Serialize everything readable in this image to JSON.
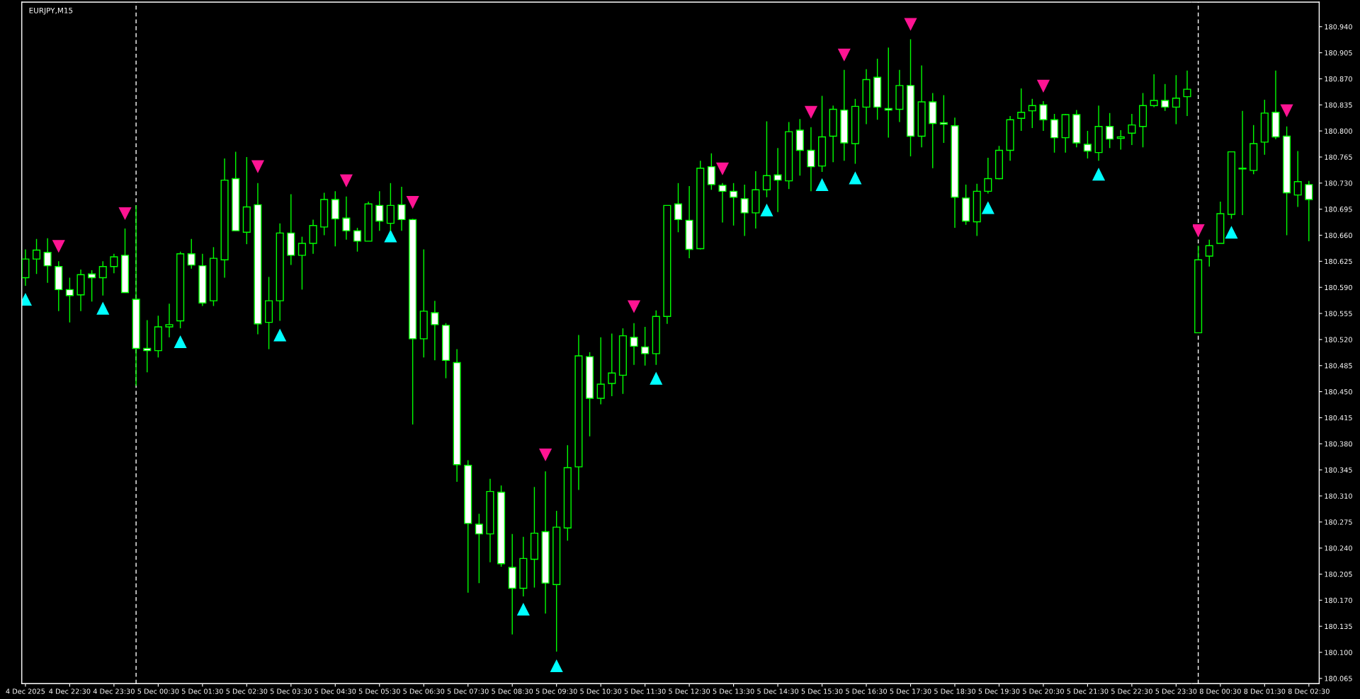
{
  "chart_data": [
    {
      "type": "candlestick",
      "title": "EURJPY,M15",
      "color": "#00ff00",
      "tick_labels": "x",
      "x": [
        "2025-12-04T21:30",
        "2025-12-04T21:45",
        "2025-12-04T22:00",
        "2025-12-04T22:15",
        "2025-12-04T22:30",
        "2025-12-04T22:45",
        "2025-12-04T23:00",
        "2025-12-04T23:15",
        "2025-12-04T23:30",
        "2025-12-04T23:45",
        "2025-12-05T00:00",
        "2025-12-05T00:15",
        "2025-12-05T00:30",
        "2025-12-05T00:45",
        "2025-12-05T01:00",
        "2025-12-05T01:15",
        "2025-12-05T01:30",
        "2025-12-05T01:45",
        "2025-12-05T02:00",
        "2025-12-05T02:15",
        "2025-12-05T02:30",
        "2025-12-05T02:45",
        "2025-12-05T03:00",
        "2025-12-05T03:15",
        "2025-12-05T03:30",
        "2025-12-05T03:45",
        "2025-12-05T04:00",
        "2025-12-05T04:15",
        "2025-12-05T04:30",
        "2025-12-05T04:45",
        "2025-12-05T05:00",
        "2025-12-05T05:15",
        "2025-12-05T05:30",
        "2025-12-05T05:45",
        "2025-12-05T06:00",
        "2025-12-05T06:15",
        "2025-12-05T06:30",
        "2025-12-05T06:45",
        "2025-12-05T07:00",
        "2025-12-05T07:15",
        "2025-12-05T07:30",
        "2025-12-05T07:45",
        "2025-12-05T08:00",
        "2025-12-05T08:15",
        "2025-12-05T08:30",
        "2025-12-05T08:45",
        "2025-12-05T09:00",
        "2025-12-05T09:15",
        "2025-12-05T09:30",
        "2025-12-05T09:45",
        "2025-12-05T10:00",
        "2025-12-05T10:15",
        "2025-12-05T10:30",
        "2025-12-05T10:45",
        "2025-12-05T11:00",
        "2025-12-05T11:15",
        "2025-12-05T11:30",
        "2025-12-05T11:45",
        "2025-12-05T12:00",
        "2025-12-05T12:15",
        "2025-12-05T12:30",
        "2025-12-05T12:45",
        "2025-12-05T13:00",
        "2025-12-05T13:15",
        "2025-12-05T13:30",
        "2025-12-05T13:45",
        "2025-12-05T14:00",
        "2025-12-05T14:15",
        "2025-12-05T14:30",
        "2025-12-05T14:45",
        "2025-12-05T15:00",
        "2025-12-05T15:15",
        "2025-12-05T15:30",
        "2025-12-05T15:45",
        "2025-12-05T16:00",
        "2025-12-05T16:15",
        "2025-12-05T16:30",
        "2025-12-05T16:45",
        "2025-12-05T17:00",
        "2025-12-05T17:15",
        "2025-12-05T17:30",
        "2025-12-05T17:45",
        "2025-12-05T18:00",
        "2025-12-05T18:15",
        "2025-12-05T18:30",
        "2025-12-05T18:45",
        "2025-12-05T19:00",
        "2025-12-05T19:15",
        "2025-12-05T19:30",
        "2025-12-05T19:45",
        "2025-12-05T20:00",
        "2025-12-05T20:15",
        "2025-12-05T20:30",
        "2025-12-05T20:45",
        "2025-12-05T21:00",
        "2025-12-05T21:15",
        "2025-12-05T21:30",
        "2025-12-05T21:45",
        "2025-12-05T22:00",
        "2025-12-05T22:15",
        "2025-12-05T22:30",
        "2025-12-05T22:45",
        "2025-12-05T23:00",
        "2025-12-05T23:15",
        "2025-12-05T23:30",
        "2025-12-05T23:45"
      ],
      "ohlc": [
        [
          180.603,
          180.641,
          180.592,
          180.628
        ],
        [
          180.628,
          180.655,
          180.608,
          180.64
        ],
        [
          180.637,
          180.656,
          180.596,
          180.619
        ],
        [
          180.618,
          180.625,
          180.558,
          180.587
        ],
        [
          180.587,
          180.603,
          180.543,
          180.579
        ],
        [
          180.58,
          180.614,
          180.558,
          180.607
        ],
        [
          180.608,
          180.613,
          180.571,
          180.603
        ],
        [
          180.603,
          180.625,
          180.579,
          180.618
        ],
        [
          180.618,
          180.635,
          180.609,
          180.631
        ],
        [
          180.633,
          180.669,
          180.583,
          180.583
        ],
        [
          180.574,
          180.7,
          180.458,
          180.508
        ],
        [
          180.508,
          180.546,
          180.476,
          180.505
        ],
        [
          180.505,
          180.552,
          180.496,
          180.537
        ],
        [
          180.537,
          180.568,
          180.523,
          180.54
        ],
        [
          180.545,
          180.638,
          180.535,
          180.635
        ],
        [
          180.635,
          180.655,
          180.615,
          180.62
        ],
        [
          180.619,
          180.635,
          180.565,
          180.569
        ],
        [
          180.572,
          180.644,
          180.565,
          180.629
        ],
        [
          180.627,
          180.763,
          180.603,
          180.734
        ],
        [
          180.736,
          180.772,
          180.666,
          180.666
        ],
        [
          180.664,
          180.765,
          180.648,
          180.698
        ],
        [
          180.701,
          180.73,
          180.527,
          180.541
        ],
        [
          180.543,
          180.604,
          180.507,
          180.572
        ],
        [
          180.572,
          180.676,
          180.545,
          180.663
        ],
        [
          180.663,
          180.715,
          180.62,
          180.633
        ],
        [
          180.633,
          180.658,
          180.587,
          180.649
        ],
        [
          180.649,
          180.681,
          180.635,
          180.673
        ],
        [
          180.671,
          180.717,
          180.66,
          180.708
        ],
        [
          180.708,
          180.719,
          180.645,
          180.682
        ],
        [
          180.683,
          180.712,
          180.654,
          180.666
        ],
        [
          180.666,
          180.67,
          180.638,
          180.652
        ],
        [
          180.652,
          180.705,
          180.652,
          180.702
        ],
        [
          180.7,
          180.719,
          180.666,
          180.679
        ],
        [
          180.676,
          180.73,
          180.666,
          180.7
        ],
        [
          180.701,
          180.725,
          180.666,
          180.681
        ],
        [
          180.681,
          180.682,
          180.406,
          180.521
        ],
        [
          180.521,
          180.641,
          180.496,
          180.558
        ],
        [
          180.556,
          180.572,
          180.492,
          180.54
        ],
        [
          180.539,
          180.542,
          180.468,
          180.492
        ],
        [
          180.489,
          180.507,
          180.329,
          180.352
        ],
        [
          180.351,
          180.358,
          180.18,
          180.273
        ],
        [
          180.272,
          180.286,
          180.193,
          180.259
        ],
        [
          180.259,
          180.333,
          180.221,
          180.316
        ],
        [
          180.315,
          180.324,
          180.215,
          180.219
        ],
        [
          180.214,
          180.259,
          180.124,
          180.186
        ],
        [
          180.186,
          180.255,
          180.175,
          180.226
        ],
        [
          180.225,
          180.322,
          180.187,
          180.26
        ],
        [
          180.262,
          180.343,
          180.152,
          180.193
        ],
        [
          180.191,
          180.29,
          180.101,
          180.268
        ],
        [
          180.267,
          180.378,
          180.25,
          180.348
        ],
        [
          180.349,
          180.526,
          180.318,
          180.498
        ],
        [
          180.497,
          180.503,
          180.39,
          180.441
        ],
        [
          180.441,
          180.523,
          180.433,
          180.46
        ],
        [
          180.461,
          180.528,
          180.444,
          180.475
        ],
        [
          180.472,
          180.535,
          180.447,
          180.525
        ],
        [
          180.523,
          180.542,
          180.486,
          180.511
        ],
        [
          180.51,
          180.537,
          180.485,
          180.501
        ],
        [
          180.501,
          180.559,
          180.486,
          180.551
        ],
        [
          180.551,
          180.7,
          180.541,
          180.7
        ],
        [
          180.702,
          180.73,
          180.664,
          180.681
        ],
        [
          180.68,
          180.726,
          180.629,
          180.641
        ],
        [
          180.642,
          180.76,
          180.641,
          180.75
        ],
        [
          180.752,
          180.77,
          180.721,
          180.728
        ],
        [
          180.727,
          180.73,
          180.677,
          180.719
        ],
        [
          180.719,
          180.73,
          180.673,
          180.711
        ],
        [
          180.709,
          180.728,
          180.659,
          180.69
        ],
        [
          180.69,
          180.746,
          180.669,
          180.721
        ],
        [
          180.721,
          180.813,
          180.711,
          180.74
        ],
        [
          180.741,
          180.777,
          180.691,
          180.734
        ],
        [
          180.733,
          180.812,
          180.722,
          180.799
        ],
        [
          180.801,
          180.816,
          180.74,
          180.774
        ],
        [
          180.774,
          180.805,
          180.719,
          180.752
        ],
        [
          180.753,
          180.847,
          180.745,
          180.792
        ],
        [
          180.793,
          180.834,
          180.758,
          180.829
        ],
        [
          180.828,
          180.882,
          180.76,
          180.784
        ],
        [
          180.783,
          180.843,
          180.756,
          180.833
        ],
        [
          180.832,
          180.883,
          180.809,
          180.869
        ],
        [
          180.872,
          180.897,
          180.815,
          180.832
        ],
        [
          180.83,
          180.912,
          180.791,
          180.828
        ],
        [
          180.829,
          180.882,
          180.812,
          180.861
        ],
        [
          180.861,
          180.923,
          180.766,
          180.793
        ],
        [
          180.793,
          180.888,
          180.778,
          180.839
        ],
        [
          180.839,
          180.851,
          180.75,
          180.81
        ],
        [
          180.811,
          180.848,
          180.784,
          180.809
        ],
        [
          180.807,
          180.818,
          180.67,
          180.711
        ],
        [
          180.71,
          180.728,
          180.674,
          180.679
        ],
        [
          180.678,
          180.729,
          180.659,
          180.719
        ],
        [
          180.719,
          180.764,
          180.716,
          180.736
        ],
        [
          180.736,
          180.78,
          180.735,
          180.774
        ],
        [
          180.774,
          180.82,
          180.76,
          180.815
        ],
        [
          180.817,
          180.857,
          180.8,
          180.825
        ],
        [
          180.827,
          180.843,
          180.804,
          180.834
        ],
        [
          180.835,
          180.84,
          180.8,
          180.815
        ],
        [
          180.815,
          180.823,
          180.771,
          180.791
        ],
        [
          180.791,
          180.823,
          180.771,
          180.822
        ],
        [
          180.822,
          180.828,
          180.778,
          180.784
        ],
        [
          180.782,
          180.8,
          180.763,
          180.773
        ],
        [
          180.771,
          180.834,
          180.76,
          180.806
        ],
        [
          180.806,
          180.824,
          180.777,
          180.789
        ],
        [
          180.79,
          180.801,
          180.775,
          180.792
        ],
        [
          180.797,
          180.823,
          180.781,
          180.808
        ],
        [
          180.806,
          180.851,
          180.778,
          180.834
        ],
        [
          180.834,
          180.876,
          180.832,
          180.841
        ],
        [
          180.841,
          180.863,
          180.827,
          180.832
        ],
        [
          180.832,
          180.875,
          180.809,
          180.844
        ],
        [
          180.846,
          180.881,
          180.82,
          180.856
        ]
      ],
      "series": [
        {
          "type": "scatter",
          "marker": "triangle",
          "color": "#00ffff",
          "x": [
            "2025-12-04T21:30",
            "2025-12-04T23:15",
            "2025-12-05T01:00",
            "2025-12-05T03:15",
            "2025-12-05T05:45",
            "2025-12-05T08:45",
            "2025-12-05T09:30",
            "2025-12-05T11:45",
            "2025-12-05T14:15",
            "2025-12-05T15:30",
            "2025-12-05T16:15",
            "2025-12-05T19:15",
            "2025-12-05T21:45"
          ],
          "values": [
            180.574,
            180.562,
            180.517,
            180.526,
            180.659,
            180.158,
            180.082,
            180.468,
            180.694,
            180.728,
            180.737,
            180.697,
            180.742
          ]
        },
        {
          "type": "scatter",
          "marker": "triangle",
          "color": "#ff1493",
          "x": [
            "2025-12-04T22:15",
            "2025-12-04T23:45",
            "2025-12-05T02:45",
            "2025-12-05T04:45",
            "2025-12-05T06:15",
            "2025-12-05T09:15",
            "2025-12-05T11:15",
            "2025-12-05T13:15",
            "2025-12-05T15:15",
            "2025-12-05T16:00",
            "2025-12-05T17:30",
            "2025-12-05T20:30"
          ],
          "values": [
            180.645,
            180.689,
            180.752,
            180.733,
            180.704,
            180.365,
            180.564,
            180.749,
            180.825,
            180.902,
            180.943,
            180.86
          ]
        }
      ],
      "ref_lines": [
        {
          "axis": "x",
          "value": "2025-12-05T00:00",
          "color": "#ffffff",
          "line_style": "dashed"
        }
      ],
      "xlim": [
        "2025-12-04T21:25",
        "2025-12-05T23:52"
      ],
      "xticks": [
        {
          "value": "2025-12-04T21:30",
          "label": "4 Dec 2025"
        },
        {
          "value": "2025-12-04T22:30",
          "label": "4 Dec 22:30"
        },
        {
          "value": "2025-12-04T23:30",
          "label": "4 Dec 23:30"
        },
        {
          "value": "2025-12-05T00:30",
          "label": "5 Dec 00:30"
        },
        {
          "value": "2025-12-05T01:30",
          "label": "5 Dec 01:30"
        },
        {
          "value": "2025-12-05T02:30",
          "label": "5 Dec 02:30"
        },
        {
          "value": "2025-12-05T03:30",
          "label": "5 Dec 03:30"
        },
        {
          "value": "2025-12-05T04:30",
          "label": "5 Dec 04:30"
        },
        {
          "value": "2025-12-05T05:30",
          "label": "5 Dec 05:30"
        },
        {
          "value": "2025-12-05T06:30",
          "label": "5 Dec 06:30"
        },
        {
          "value": "2025-12-05T07:30",
          "label": "5 Dec 07:30"
        },
        {
          "value": "2025-12-05T08:30",
          "label": "5 Dec 08:30"
        },
        {
          "value": "2025-12-05T09:30",
          "label": "5 Dec 09:30"
        },
        {
          "value": "2025-12-05T10:30",
          "label": "5 Dec 10:30"
        },
        {
          "value": "2025-12-05T11:30",
          "label": "5 Dec 11:30"
        },
        {
          "value": "2025-12-05T12:30",
          "label": "5 Dec 12:30"
        },
        {
          "value": "2025-12-05T13:30",
          "label": "5 Dec 13:30"
        },
        {
          "value": "2025-12-05T14:30",
          "label": "5 Dec 14:30"
        },
        {
          "value": "2025-12-05T15:30",
          "label": "5 Dec 15:30"
        },
        {
          "value": "2025-12-05T16:30",
          "label": "5 Dec 16:30"
        },
        {
          "value": "2025-12-05T17:30",
          "label": "5 Dec 17:30"
        },
        {
          "value": "2025-12-05T18:30",
          "label": "5 Dec 18:30"
        },
        {
          "value": "2025-12-05T19:30",
          "label": "5 Dec 19:30"
        },
        {
          "value": "2025-12-05T20:30",
          "label": "5 Dec 20:30"
        },
        {
          "value": "2025-12-05T21:30",
          "label": "5 Dec 21:30"
        },
        {
          "value": "2025-12-05T22:30",
          "label": "5 Dec 22:30"
        },
        {
          "value": "2025-12-05T23:30",
          "label": "5 Dec 23:30"
        }
      ],
      "ylim": [
        180.058,
        180.973
      ],
      "grid": false,
      "legend": false
    },
    {
      "type": "candlestick",
      "color": "#00ff00",
      "x": [
        "2025-12-08T00:00",
        "2025-12-08T00:15",
        "2025-12-08T00:30",
        "2025-12-08T00:45",
        "2025-12-08T01:00",
        "2025-12-08T01:15",
        "2025-12-08T01:30",
        "2025-12-08T01:45",
        "2025-12-08T02:00",
        "2025-12-08T02:15",
        "2025-12-08T02:30"
      ],
      "ohlc": [
        [
          180.529,
          180.646,
          180.529,
          180.627
        ],
        [
          180.632,
          180.654,
          180.618,
          180.646
        ],
        [
          180.649,
          180.705,
          180.649,
          180.689
        ],
        [
          180.688,
          180.772,
          180.682,
          180.772
        ],
        [
          180.75,
          180.827,
          180.687,
          180.749
        ],
        [
          180.747,
          180.808,
          180.742,
          180.783
        ],
        [
          180.785,
          180.842,
          180.768,
          180.824
        ],
        [
          180.825,
          180.881,
          180.789,
          180.792
        ],
        [
          180.793,
          180.806,
          180.66,
          180.717
        ],
        [
          180.714,
          180.773,
          180.698,
          180.732
        ],
        [
          180.728,
          180.733,
          180.652,
          180.708
        ]
      ],
      "series": [
        {
          "type": "scatter",
          "marker": "triangle",
          "color": "#00ffff",
          "x": [
            "2025-12-08T00:45"
          ],
          "values": [
            180.664
          ]
        },
        {
          "type": "scatter",
          "marker": "triangle",
          "color": "#ff1493",
          "x": [
            "2025-12-08T00:00",
            "2025-12-08T02:00"
          ],
          "values": [
            180.666,
            180.827
          ]
        }
      ],
      "ref_lines": [
        {
          "axis": "x",
          "value": "2025-12-08T00:00",
          "color": "#ffffff",
          "line_style": "dashed"
        }
      ],
      "xlim": [
        "2025-12-07T23:52",
        "2025-12-08T02:44"
      ],
      "xticks": [
        {
          "value": "2025-12-08T00:30",
          "label": "8 Dec 00:30"
        },
        {
          "value": "2025-12-08T01:30",
          "label": "8 Dec 01:30"
        },
        {
          "value": "2025-12-08T02:30",
          "label": "8 Dec 02:30"
        }
      ],
      "ylim": [
        180.058,
        180.973
      ],
      "yticks": [
        {
          "value": 180.065,
          "label": "180.065"
        },
        {
          "value": 180.1,
          "label": "180.100"
        },
        {
          "value": 180.135,
          "label": "180.135"
        },
        {
          "value": 180.17,
          "label": "180.170"
        },
        {
          "value": 180.205,
          "label": "180.205"
        },
        {
          "value": 180.24,
          "label": "180.240"
        },
        {
          "value": 180.275,
          "label": "180.275"
        },
        {
          "value": 180.31,
          "label": "180.310"
        },
        {
          "value": 180.345,
          "label": "180.345"
        },
        {
          "value": 180.38,
          "label": "180.380"
        },
        {
          "value": 180.415,
          "label": "180.415"
        },
        {
          "value": 180.45,
          "label": "180.450"
        },
        {
          "value": 180.485,
          "label": "180.485"
        },
        {
          "value": 180.52,
          "label": "180.520"
        },
        {
          "value": 180.555,
          "label": "180.555"
        },
        {
          "value": 180.59,
          "label": "180.590"
        },
        {
          "value": 180.625,
          "label": "180.625"
        },
        {
          "value": 180.66,
          "label": "180.660"
        },
        {
          "value": 180.695,
          "label": "180.695"
        },
        {
          "value": 180.73,
          "label": "180.730"
        },
        {
          "value": 180.765,
          "label": "180.765"
        },
        {
          "value": 180.8,
          "label": "180.800"
        },
        {
          "value": 180.835,
          "label": "180.835"
        },
        {
          "value": 180.87,
          "label": "180.870"
        },
        {
          "value": 180.905,
          "label": "180.905"
        },
        {
          "value": 180.94,
          "label": "180.940"
        }
      ],
      "grid": false,
      "legend": false
    }
  ]
}
